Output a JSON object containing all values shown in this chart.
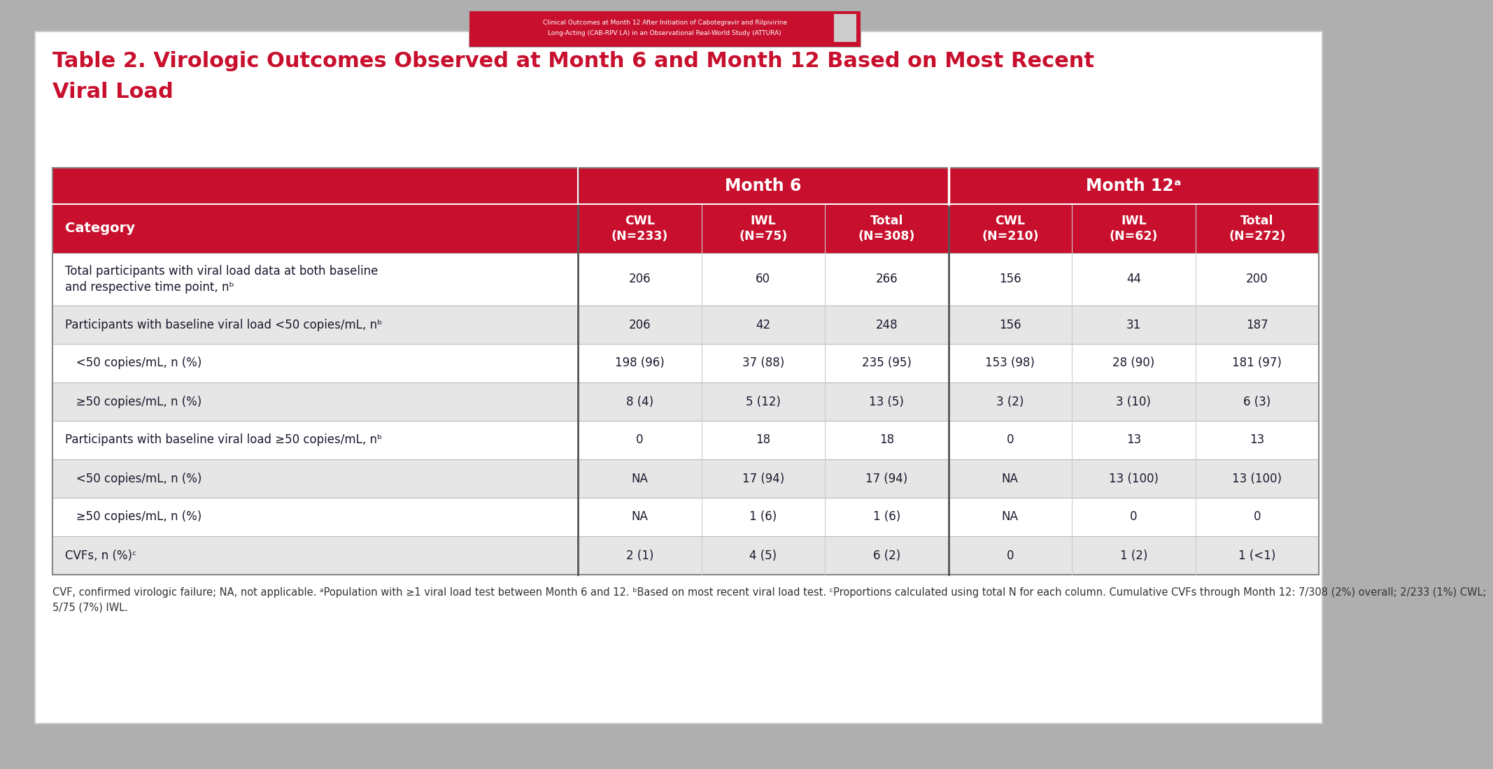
{
  "title_line1": "Table 2. Virologic Outcomes Observed at Month 6 and Month 12 Based on Most Recent",
  "title_line2": "Viral Load",
  "title_color": "#C8102E",
  "header1_text": "Month 6",
  "header2_text": "Month 12ᵃ",
  "col_headers": [
    "CWL\n(N=233)",
    "IWL\n(N=75)",
    "Total\n(N=308)",
    "CWL\n(N=210)",
    "IWL\n(N=62)",
    "Total\n(N=272)"
  ],
  "category_label": "Category",
  "rows": [
    {
      "label": "Total participants with viral load data at both baseline\nand respective time point, nᵇ",
      "values": [
        "206",
        "60",
        "266",
        "156",
        "44",
        "200"
      ],
      "bg": "#FFFFFF",
      "tall": true
    },
    {
      "label": "Participants with baseline viral load <50 copies/mL, nᵇ",
      "values": [
        "206",
        "42",
        "248",
        "156",
        "31",
        "187"
      ],
      "bg": "#E6E6E6",
      "tall": false
    },
    {
      "label": "   <50 copies/mL, n (%)",
      "values": [
        "198 (96)",
        "37 (88)",
        "235 (95)",
        "153 (98)",
        "28 (90)",
        "181 (97)"
      ],
      "bg": "#FFFFFF",
      "tall": false
    },
    {
      "label": "   ≥50 copies/mL, n (%)",
      "values": [
        "8 (4)",
        "5 (12)",
        "13 (5)",
        "3 (2)",
        "3 (10)",
        "6 (3)"
      ],
      "bg": "#E6E6E6",
      "tall": false
    },
    {
      "label": "Participants with baseline viral load ≥50 copies/mL, nᵇ",
      "values": [
        "0",
        "18",
        "18",
        "0",
        "13",
        "13"
      ],
      "bg": "#FFFFFF",
      "tall": false
    },
    {
      "label": "   <50 copies/mL, n (%)",
      "values": [
        "NA",
        "17 (94)",
        "17 (94)",
        "NA",
        "13 (100)",
        "13 (100)"
      ],
      "bg": "#E6E6E6",
      "tall": false
    },
    {
      "label": "   ≥50 copies/mL, n (%)",
      "values": [
        "NA",
        "1 (6)",
        "1 (6)",
        "NA",
        "0",
        "0"
      ],
      "bg": "#FFFFFF",
      "tall": false
    },
    {
      "label": "CVFs, n (%)ᶜ",
      "values": [
        "2 (1)",
        "4 (5)",
        "6 (2)",
        "0",
        "1 (2)",
        "1 (<1)"
      ],
      "bg": "#E6E6E6",
      "tall": false
    }
  ],
  "footnote_lines": [
    "CVF, confirmed virologic failure; NA, not applicable. ᵃPopulation with ≥1 viral load test between Month 6 and 12. ᵇBased on most recent viral load test. ᶜProportions calculated using total N for each column. Cumulative CVFs through Month 12: 7/308 (2%) overall; 2/233 (1%) CWL;",
    "5/75 (7%) IWL."
  ],
  "header_bg": "#C8102E",
  "header_fg": "#FFFFFF",
  "outer_bg": "#FFFFFF",
  "text_color": "#1A1A2E",
  "bg_color": "#AFAFAF"
}
